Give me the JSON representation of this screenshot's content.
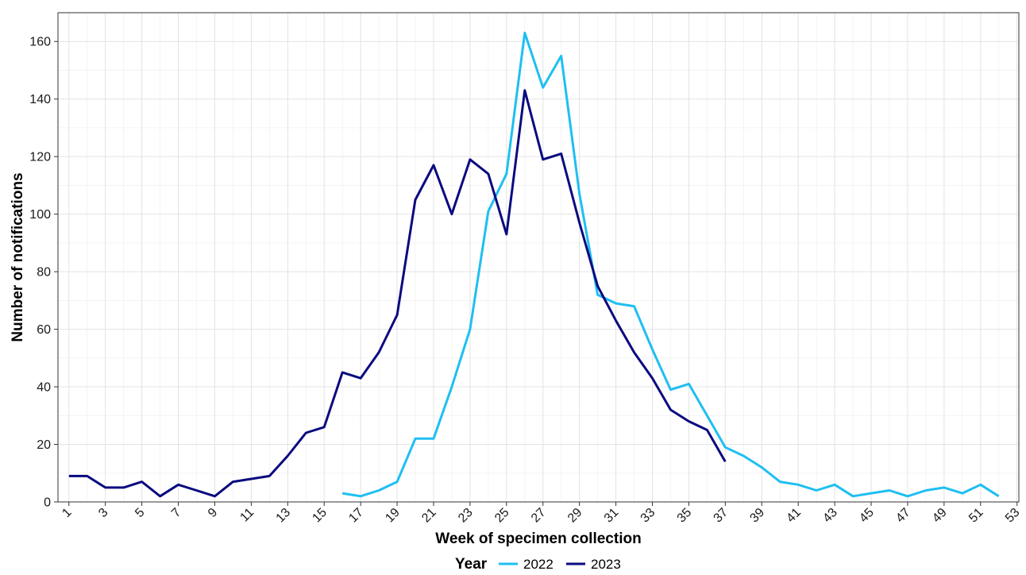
{
  "chart_data": {
    "type": "line",
    "xlabel": "Week of specimen collection",
    "ylabel": "Number of notifications",
    "xlim": [
      1,
      53
    ],
    "ylim": [
      0,
      170
    ],
    "x_ticks": [
      1,
      3,
      5,
      7,
      9,
      11,
      13,
      15,
      17,
      19,
      21,
      23,
      25,
      27,
      29,
      31,
      33,
      35,
      37,
      39,
      41,
      43,
      45,
      47,
      49,
      51,
      53
    ],
    "y_ticks": [
      0,
      20,
      40,
      60,
      80,
      100,
      120,
      140,
      160
    ],
    "grid": true,
    "legend": {
      "title": "Year",
      "position": "bottom"
    },
    "series": [
      {
        "name": "2022",
        "color": "#1EBFF2",
        "x": [
          16,
          17,
          18,
          19,
          20,
          21,
          22,
          23,
          24,
          25,
          26,
          27,
          28,
          29,
          30,
          31,
          32,
          33,
          34,
          35,
          36,
          37,
          38,
          39,
          40,
          41,
          42,
          43,
          44,
          45,
          46,
          47,
          48,
          49,
          50,
          51,
          52
        ],
        "values": [
          3,
          2,
          4,
          7,
          22,
          22,
          40,
          60,
          101,
          114,
          163,
          144,
          155,
          107,
          72,
          69,
          68,
          53,
          39,
          41,
          30,
          19,
          16,
          12,
          7,
          6,
          4,
          6,
          2,
          3,
          4,
          2,
          4,
          5,
          3,
          6,
          2
        ]
      },
      {
        "name": "2023",
        "color": "#0A0A80",
        "x": [
          1,
          2,
          3,
          4,
          5,
          6,
          7,
          8,
          9,
          10,
          11,
          12,
          13,
          14,
          15,
          16,
          17,
          18,
          19,
          20,
          21,
          22,
          23,
          24,
          25,
          26,
          27,
          28,
          29,
          30,
          31,
          32,
          33,
          34,
          35,
          36,
          37
        ],
        "values": [
          9,
          9,
          5,
          5,
          7,
          2,
          6,
          4,
          2,
          7,
          8,
          9,
          16,
          24,
          26,
          45,
          43,
          52,
          65,
          105,
          117,
          100,
          119,
          114,
          93,
          143,
          119,
          121,
          97,
          75,
          63,
          52,
          43,
          32,
          28,
          25,
          14
        ]
      }
    ]
  }
}
